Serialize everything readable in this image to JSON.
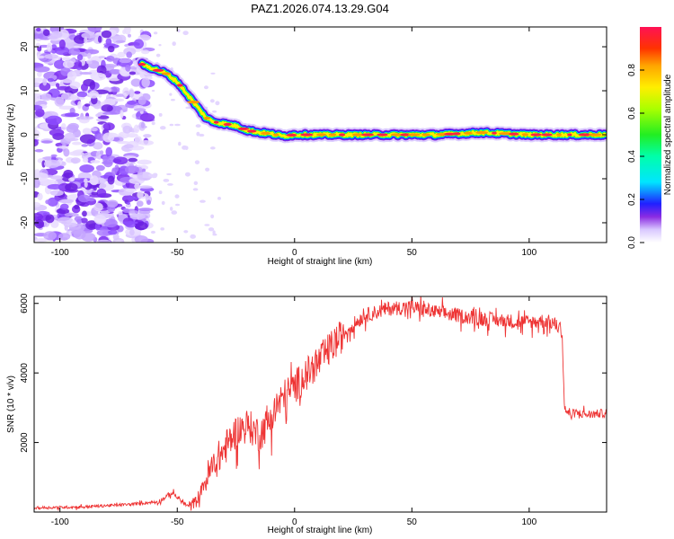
{
  "title": "PAZ1.2026.074.13.29.G04",
  "chart_data": [
    {
      "type": "heatmap",
      "title": "PAZ1.2026.074.13.29.G04",
      "xlabel": "Height of straight line (km)",
      "ylabel": "Frequency (Hz)",
      "xlim": [
        -111,
        133
      ],
      "ylim": [
        -24.5,
        24.5
      ],
      "xticks": [
        -100,
        -50,
        0,
        50,
        100
      ],
      "yticks": [
        -20,
        -10,
        0,
        10,
        20
      ],
      "ridge": {
        "x": [
          -65,
          -60,
          -55,
          -50,
          -47,
          -44,
          -41,
          -38,
          -35,
          -30,
          -25,
          -20,
          -15,
          -10,
          -5,
          0,
          10,
          20,
          40,
          60,
          80,
          100,
          120,
          133
        ],
        "y": [
          16,
          15,
          14,
          12,
          10,
          8,
          6,
          4,
          3,
          2.5,
          2,
          1,
          0.5,
          0.2,
          -0.3,
          0,
          0,
          0,
          0,
          0,
          0.5,
          0,
          0,
          0
        ]
      },
      "noise_region_x": [
        -111,
        -62
      ],
      "colorbar": {
        "label": "Normalized spectral amplitude",
        "range": [
          0.0,
          1.0
        ],
        "ticks": [
          0.0,
          0.2,
          0.4,
          0.6,
          0.8
        ],
        "tick_labels": [
          "0.0",
          "0.2",
          "0.4",
          "0.6",
          "0.8"
        ]
      }
    },
    {
      "type": "line",
      "xlabel": "Height of straight line (km)",
      "ylabel": "SNR (10 * v/v)",
      "xlim": [
        -111,
        133
      ],
      "ylim": [
        0,
        6200
      ],
      "xticks": [
        -100,
        -50,
        0,
        50,
        100
      ],
      "yticks": [
        2000,
        4000,
        6000
      ],
      "color": "#ee3333",
      "series": [
        {
          "name": "SNR",
          "x": [
            -111,
            -90,
            -70,
            -58,
            -52,
            -48,
            -45,
            -42,
            -38,
            -34,
            -30,
            -25,
            -20,
            -15,
            -10,
            -5,
            0,
            5,
            10,
            15,
            20,
            25,
            30,
            35,
            40,
            50,
            60,
            70,
            80,
            90,
            100,
            105,
            110,
            114,
            115,
            117,
            120,
            125,
            133
          ],
          "y": [
            120,
            150,
            220,
            300,
            550,
            300,
            150,
            300,
            900,
            1400,
            1800,
            2300,
            2500,
            2200,
            2700,
            3300,
            3600,
            3950,
            4300,
            4700,
            5050,
            5400,
            5650,
            5750,
            5850,
            5900,
            5750,
            5650,
            5550,
            5500,
            5450,
            5500,
            5450,
            5250,
            3000,
            2800,
            2850,
            2800,
            2850
          ]
        }
      ]
    }
  ]
}
